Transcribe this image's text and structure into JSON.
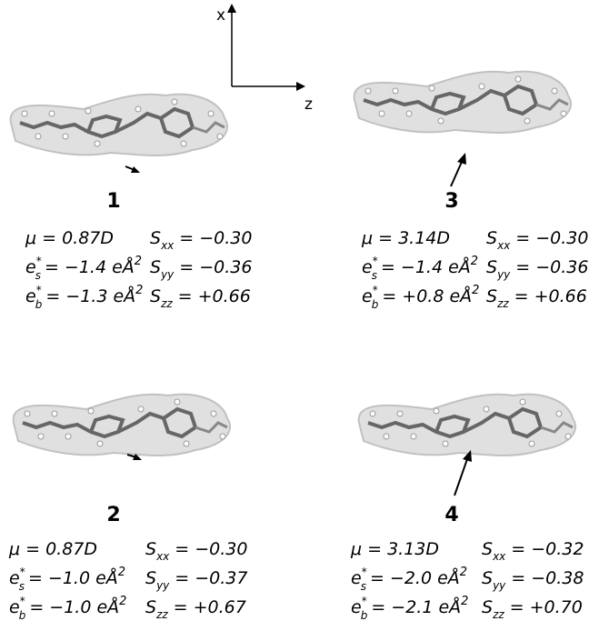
{
  "axes": {
    "x": "x",
    "z": "z"
  },
  "panels": [
    {
      "label": "1",
      "mu": "μ = 0.87D",
      "es": {
        "sym": "e",
        "sup": "*",
        "sub": "s",
        "rhs": "= −1.4 eÅ",
        "exp": "2"
      },
      "eb": {
        "sym": "e",
        "sup": "*",
        "sub": "b",
        "rhs": "= −1.3 eÅ",
        "exp": "2"
      },
      "sxx": {
        "sym": "S",
        "sub": "xx",
        "rhs": "= −0.30"
      },
      "syy": {
        "sym": "S",
        "sub": "yy",
        "rhs": "= −0.36"
      },
      "szz": {
        "sym": "S",
        "sub": "zz",
        "rhs": "= +0.66"
      }
    },
    {
      "label": "2",
      "mu": "μ = 0.87D",
      "es": {
        "sym": "e",
        "sup": "*",
        "sub": "s",
        "rhs": "= −1.0 eÅ",
        "exp": "2"
      },
      "eb": {
        "sym": "e",
        "sup": "*",
        "sub": "b",
        "rhs": "= −1.0 eÅ",
        "exp": "2"
      },
      "sxx": {
        "sym": "S",
        "sub": "xx",
        "rhs": "= −0.30"
      },
      "syy": {
        "sym": "S",
        "sub": "yy",
        "rhs": "= −0.37"
      },
      "szz": {
        "sym": "S",
        "sub": "zz",
        "rhs": "= +0.67"
      }
    },
    {
      "label": "3",
      "mu": "μ = 3.14D",
      "es": {
        "sym": "e",
        "sup": "*",
        "sub": "s",
        "rhs": "= −1.4 eÅ",
        "exp": "2"
      },
      "eb": {
        "sym": "e",
        "sup": "*",
        "sub": "b",
        "rhs": "= +0.8 eÅ",
        "exp": "2"
      },
      "sxx": {
        "sym": "S",
        "sub": "xx",
        "rhs": "= −0.30"
      },
      "syy": {
        "sym": "S",
        "sub": "yy",
        "rhs": "= −0.36"
      },
      "szz": {
        "sym": "S",
        "sub": "zz",
        "rhs": "= +0.66"
      }
    },
    {
      "label": "4",
      "mu": "μ = 3.13D",
      "es": {
        "sym": "e",
        "sup": "*",
        "sub": "s",
        "rhs": "= −2.0 eÅ",
        "exp": "2"
      },
      "eb": {
        "sym": "e",
        "sup": "*",
        "sub": "b",
        "rhs": "= −2.1 eÅ",
        "exp": "2"
      },
      "sxx": {
        "sym": "S",
        "sub": "xx",
        "rhs": "= −0.32"
      },
      "syy": {
        "sym": "S",
        "sub": "yy",
        "rhs": "= −0.38"
      },
      "szz": {
        "sym": "S",
        "sub": "zz",
        "rhs": "= +0.70"
      }
    }
  ]
}
